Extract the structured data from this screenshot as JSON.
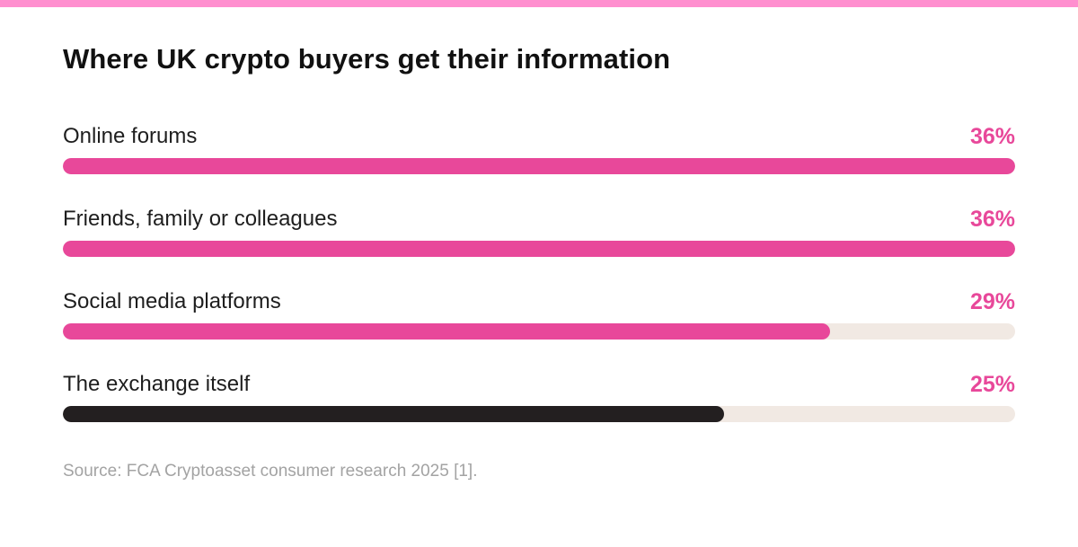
{
  "colors": {
    "top_bar": "#ff8fcf",
    "accent": "#e8489a",
    "highlight_bar": "#231f20",
    "track": "#f1e9e3"
  },
  "chart_data": {
    "type": "bar",
    "orientation": "horizontal",
    "title": "Where UK crypto buyers get their information",
    "categories": [
      "Online forums",
      "Friends, family or colleagues",
      "Social media platforms",
      "The exchange itself"
    ],
    "values": [
      36,
      36,
      29,
      25
    ],
    "value_labels": [
      "36%",
      "36%",
      "29%",
      "25%"
    ],
    "unit": "%",
    "xlim": [
      0,
      36
    ],
    "bar_colors": [
      "#e8489a",
      "#e8489a",
      "#e8489a",
      "#231f20"
    ],
    "grid": false,
    "source": "Source: FCA Cryptoasset consumer research 2025 [1]."
  }
}
